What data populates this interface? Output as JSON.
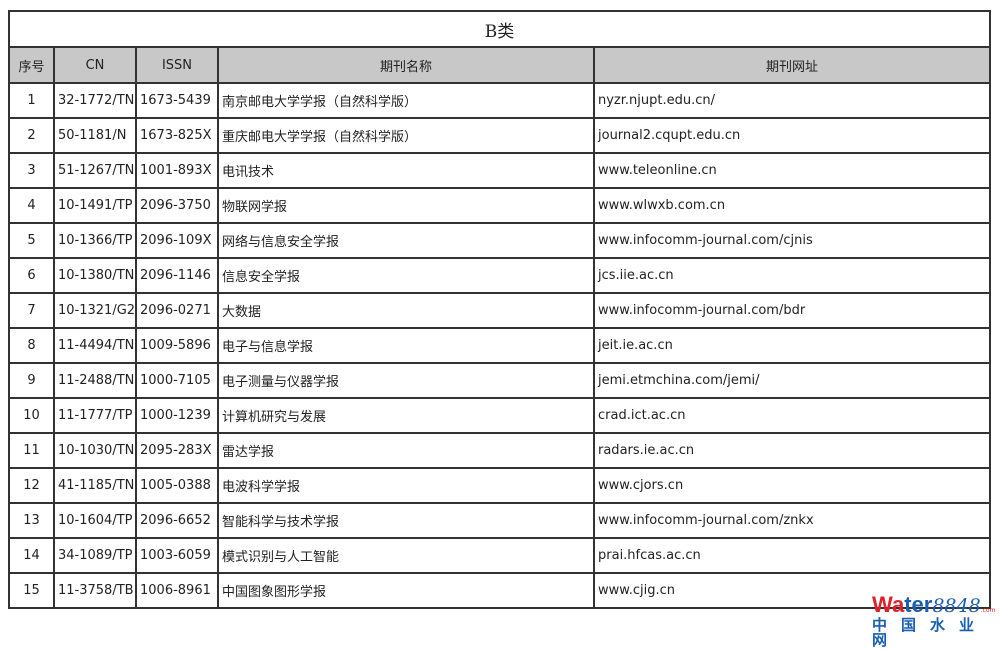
{
  "title": "B类",
  "columns": [
    "序号",
    "CN",
    "ISSN",
    "期刊名称",
    "期刊网址"
  ],
  "rows": [
    [
      "1",
      "32-1772/TN",
      "1673-5439",
      "南京邮电大学学报（自然科学版）",
      "nyzr.njupt.edu.cn/"
    ],
    [
      "2",
      "50-1181/N",
      "1673-825X",
      "重庆邮电大学学报（自然科学版）",
      "journal2.cqupt.edu.cn"
    ],
    [
      "3",
      "51-1267/TN",
      "1001-893X",
      "电讯技术",
      "www.teleonline.cn"
    ],
    [
      "4",
      "10-1491/TP",
      "2096-3750",
      "物联网学报",
      "www.wlwxb.com.cn"
    ],
    [
      "5",
      "10-1366/TP",
      "2096-109X",
      "网络与信息安全学报",
      "www.infocomm-journal.com/cjnis"
    ],
    [
      "6",
      "10-1380/TN",
      "2096-1146",
      "信息安全学报",
      "jcs.iie.ac.cn"
    ],
    [
      "7",
      "10-1321/G2",
      "2096-0271",
      "大数据",
      "www.infocomm-journal.com/bdr"
    ],
    [
      "8",
      "11-4494/TN",
      "1009-5896",
      "电子与信息学报",
      "jeit.ie.ac.cn"
    ],
    [
      "9",
      "11-2488/TN",
      "1000-7105",
      "电子测量与仪器学报",
      "jemi.etmchina.com/jemi/"
    ],
    [
      "10",
      "11-1777/TP",
      "1000-1239",
      "计算机研究与发展",
      "crad.ict.ac.cn"
    ],
    [
      "11",
      "10-1030/TN",
      "2095-283X",
      "雷达学报",
      "radars.ie.ac.cn"
    ],
    [
      "12",
      "41-1185/TN",
      "1005-0388",
      "电波科学学报",
      "www.cjors.cn"
    ],
    [
      "13",
      "10-1604/TP",
      "2096-6652",
      "智能科学与技术学报",
      "www.infocomm-journal.com/znkx"
    ],
    [
      "14",
      "34-1089/TP",
      "1003-6059",
      "模式识别与人工智能",
      "prai.hfcas.ac.cn"
    ],
    [
      "15",
      "11-3758/TB",
      "1006-8961",
      "中国图象图形学报",
      "www.cjig.cn"
    ]
  ],
  "watermark": {
    "wa": "Wa",
    "ter": "ter",
    "num": "8848",
    "dom": ".com",
    "cn": "中国水业网"
  },
  "colors": {
    "header_bg": "#c8c8c8",
    "border": "#333333",
    "watermark_red": "#e0202a",
    "watermark_blue": "#1a5fb4"
  }
}
